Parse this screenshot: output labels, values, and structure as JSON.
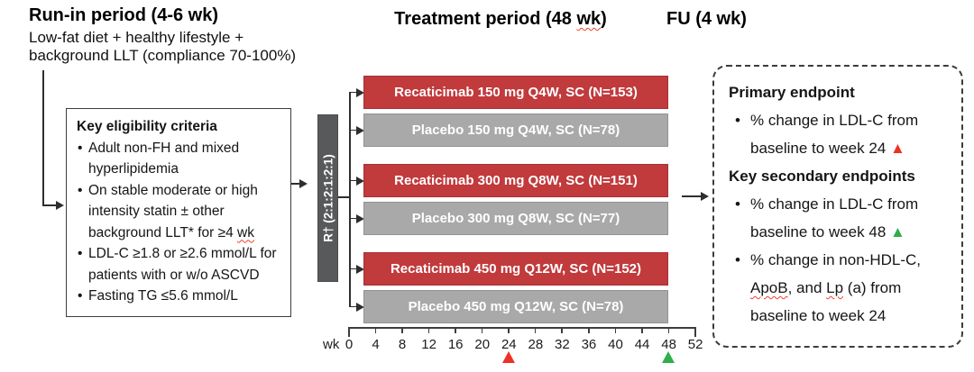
{
  "palette": {
    "arm_recaticimab": "#c13a3c",
    "arm_placebo": "#a9a9a9",
    "randomization_bar": "#58595b",
    "marker_week24": "#ee3124",
    "marker_week48": "#2fae4a",
    "spellcheck_underline": "#f03e2d"
  },
  "headers": {
    "runin_title": "Run-in period (4-6 wk)",
    "runin_sub_line1": "Low-fat diet + healthy lifestyle +",
    "runin_sub_line2": "background LLT (compliance 70-100%)",
    "treatment_title_segments": [
      {
        "t": "Treatment period (48 "
      },
      {
        "t": "wk",
        "wavy": true
      },
      {
        "t": ")"
      }
    ],
    "fu_title": "FU (4 wk)"
  },
  "eligibility_box": {
    "title": "Key eligibility criteria",
    "bullets": [
      [
        {
          "t": "Adult non-FH and mixed hyperlipidemia"
        }
      ],
      [
        {
          "t": "On stable moderate or high intensity statin ± other background LLT* for ≥4 "
        },
        {
          "t": "wk",
          "wavy": true
        }
      ],
      [
        {
          "t": "LDL-C ≥1.8 or ≥2.6 mmol/L for patients with or w/o ASCVD"
        }
      ],
      [
        {
          "t": "Fasting TG ≤5.6 mmol/L"
        }
      ]
    ]
  },
  "randomization": {
    "label": "R† (2:1:2:1:2:1)"
  },
  "arms": [
    {
      "label": "Recaticimab 150 mg Q4W, SC (N=153)",
      "type": "recaticimab"
    },
    {
      "label": "Placebo 150 mg Q4W, SC (N=78)",
      "type": "placebo"
    },
    {
      "label": "Recaticimab 300 mg Q8W, SC (N=151)",
      "type": "recaticimab"
    },
    {
      "label": "Placebo 300 mg Q8W, SC (N=77)",
      "type": "placebo"
    },
    {
      "label": "Recaticimab 450 mg Q12W, SC (N=152)",
      "type": "recaticimab"
    },
    {
      "label": "Placebo 450 mg Q12W, SC (N=78)",
      "type": "placebo"
    }
  ],
  "timeline": {
    "unit_label": "wk",
    "ticks": [
      "0",
      "4",
      "8",
      "12",
      "16",
      "20",
      "24",
      "28",
      "32",
      "36",
      "40",
      "44",
      "48",
      "52"
    ],
    "markers": [
      {
        "week": 24,
        "color": "#ee3124",
        "name": "week-24-primary-endpoint-marker"
      },
      {
        "week": 48,
        "color": "#2fae4a",
        "name": "week-48-secondary-endpoint-marker"
      }
    ]
  },
  "endpoints_box": {
    "primary_title": "Primary endpoint",
    "primary_bullets": [
      [
        {
          "t": "% change in LDL-C from baseline to week 24 "
        },
        {
          "t": "▲",
          "color": "#ee3124"
        }
      ]
    ],
    "secondary_title": "Key secondary endpoints",
    "secondary_bullets": [
      [
        {
          "t": "% change in LDL-C from baseline to week 48 "
        },
        {
          "t": "▲",
          "color": "#2fae4a"
        }
      ],
      [
        {
          "t": "% change in non-HDL-C, "
        },
        {
          "t": "ApoB",
          "wavy": true
        },
        {
          "t": ", and "
        },
        {
          "t": "Lp",
          "wavy": true
        },
        {
          "t": " (a) from baseline to week 24"
        }
      ]
    ]
  }
}
